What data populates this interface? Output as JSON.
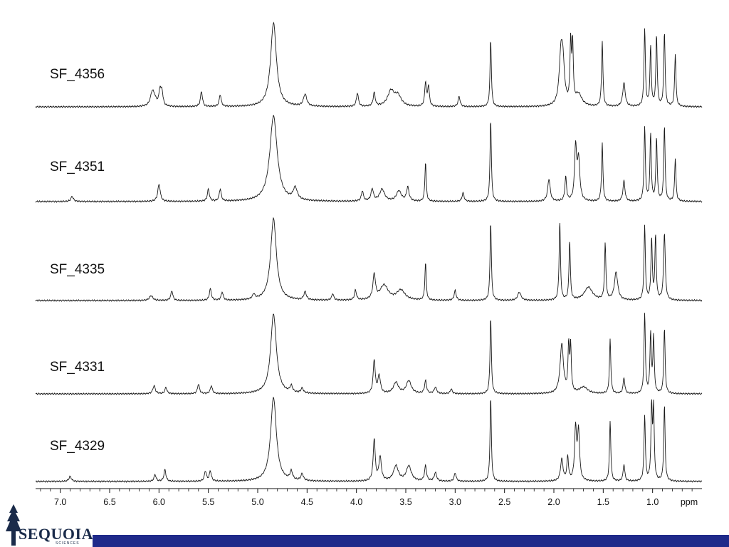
{
  "theme": {
    "trace_color": "#1a1a1a",
    "footer_color": "#1f2a8a",
    "logo_color": "#1a2b4a"
  },
  "logo": {
    "word": "SEQUOIA",
    "sub": "SCIENCES"
  },
  "chart_data": {
    "type": "line",
    "title": "",
    "xlabel": "ppm",
    "ylabel": "",
    "xlim": [
      7.25,
      0.5
    ],
    "reversed_x": true,
    "grid": false,
    "x_ticks": [
      "7.0",
      "6.5",
      "6.0",
      "5.5",
      "5.0",
      "4.5",
      "4.0",
      "3.5",
      "3.0",
      "2.5",
      "2.0",
      "1.5",
      "1.0"
    ],
    "x_tick_values": [
      7.0,
      6.5,
      6.0,
      5.5,
      5.0,
      4.5,
      4.0,
      3.5,
      3.0,
      2.5,
      2.0,
      1.5,
      1.0
    ],
    "series": [
      {
        "name": "SF_4356",
        "peaks": [
          [
            6.05,
            0.1,
            0.03
          ],
          [
            6.07,
            0.12,
            0.02
          ],
          [
            5.99,
            0.18,
            0.012
          ],
          [
            5.97,
            0.16,
            0.012
          ],
          [
            5.57,
            0.18,
            0.012
          ],
          [
            5.38,
            0.14,
            0.012
          ],
          [
            4.84,
            1.0,
            0.035
          ],
          [
            4.52,
            0.14,
            0.02
          ],
          [
            3.99,
            0.16,
            0.012
          ],
          [
            3.82,
            0.16,
            0.012
          ],
          [
            3.65,
            0.18,
            0.04
          ],
          [
            3.58,
            0.12,
            0.04
          ],
          [
            3.3,
            0.28,
            0.01
          ],
          [
            3.27,
            0.24,
            0.01
          ],
          [
            2.96,
            0.12,
            0.012
          ],
          [
            2.64,
            0.8,
            0.008
          ],
          [
            1.93,
            0.5,
            0.02
          ],
          [
            1.91,
            0.48,
            0.02
          ],
          [
            1.83,
            0.72,
            0.008
          ],
          [
            1.81,
            0.7,
            0.008
          ],
          [
            1.75,
            0.14,
            0.04
          ],
          [
            1.51,
            0.78,
            0.008
          ],
          [
            1.29,
            0.28,
            0.015
          ],
          [
            1.08,
            0.92,
            0.008
          ],
          [
            1.02,
            0.7,
            0.008
          ],
          [
            0.96,
            0.84,
            0.008
          ],
          [
            0.88,
            0.88,
            0.008
          ],
          [
            0.77,
            0.62,
            0.008
          ]
        ]
      },
      {
        "name": "SF_4351",
        "peaks": [
          [
            6.88,
            0.06,
            0.015
          ],
          [
            6.0,
            0.2,
            0.015
          ],
          [
            5.5,
            0.14,
            0.012
          ],
          [
            5.38,
            0.14,
            0.012
          ],
          [
            4.84,
            1.0,
            0.045
          ],
          [
            4.62,
            0.14,
            0.025
          ],
          [
            3.94,
            0.12,
            0.012
          ],
          [
            3.84,
            0.14,
            0.015
          ],
          [
            3.74,
            0.14,
            0.03
          ],
          [
            3.57,
            0.12,
            0.03
          ],
          [
            3.48,
            0.16,
            0.015
          ],
          [
            3.3,
            0.46,
            0.008
          ],
          [
            2.92,
            0.1,
            0.012
          ],
          [
            2.64,
            0.96,
            0.008
          ],
          [
            2.05,
            0.26,
            0.015
          ],
          [
            1.88,
            0.28,
            0.01
          ],
          [
            1.78,
            0.62,
            0.012
          ],
          [
            1.75,
            0.48,
            0.015
          ],
          [
            1.51,
            0.68,
            0.008
          ],
          [
            1.29,
            0.24,
            0.012
          ],
          [
            1.08,
            0.86,
            0.008
          ],
          [
            1.02,
            0.78,
            0.008
          ],
          [
            0.96,
            0.74,
            0.008
          ],
          [
            0.88,
            0.88,
            0.008
          ],
          [
            0.77,
            0.5,
            0.008
          ]
        ]
      },
      {
        "name": "SF_4335",
        "peaks": [
          [
            6.08,
            0.06,
            0.02
          ],
          [
            5.87,
            0.12,
            0.012
          ],
          [
            5.48,
            0.14,
            0.012
          ],
          [
            5.36,
            0.1,
            0.012
          ],
          [
            5.04,
            0.06,
            0.015
          ],
          [
            4.84,
            1.0,
            0.035
          ],
          [
            4.52,
            0.1,
            0.015
          ],
          [
            4.24,
            0.08,
            0.012
          ],
          [
            4.01,
            0.12,
            0.012
          ],
          [
            3.82,
            0.3,
            0.015
          ],
          [
            3.72,
            0.18,
            0.05
          ],
          [
            3.55,
            0.12,
            0.05
          ],
          [
            3.3,
            0.46,
            0.008
          ],
          [
            3.0,
            0.12,
            0.012
          ],
          [
            2.64,
            0.96,
            0.008
          ],
          [
            2.35,
            0.1,
            0.02
          ],
          [
            1.94,
            0.96,
            0.008
          ],
          [
            1.84,
            0.72,
            0.008
          ],
          [
            1.65,
            0.16,
            0.05
          ],
          [
            1.48,
            0.68,
            0.008
          ],
          [
            1.37,
            0.34,
            0.02
          ],
          [
            1.08,
            0.9,
            0.008
          ],
          [
            1.01,
            0.74,
            0.008
          ],
          [
            0.97,
            0.78,
            0.008
          ],
          [
            0.88,
            0.82,
            0.01
          ]
        ]
      },
      {
        "name": "SF_4331",
        "peaks": [
          [
            6.05,
            0.1,
            0.015
          ],
          [
            5.93,
            0.08,
            0.012
          ],
          [
            5.6,
            0.12,
            0.012
          ],
          [
            5.47,
            0.1,
            0.012
          ],
          [
            4.84,
            1.0,
            0.035
          ],
          [
            4.66,
            0.08,
            0.015
          ],
          [
            4.55,
            0.06,
            0.015
          ],
          [
            3.82,
            0.42,
            0.012
          ],
          [
            3.77,
            0.22,
            0.015
          ],
          [
            3.6,
            0.14,
            0.03
          ],
          [
            3.47,
            0.16,
            0.03
          ],
          [
            3.3,
            0.16,
            0.012
          ],
          [
            3.2,
            0.08,
            0.015
          ],
          [
            3.04,
            0.06,
            0.012
          ],
          [
            2.64,
            0.96,
            0.008
          ],
          [
            1.92,
            0.62,
            0.02
          ],
          [
            1.85,
            0.58,
            0.008
          ],
          [
            1.83,
            0.56,
            0.008
          ],
          [
            1.7,
            0.08,
            0.05
          ],
          [
            1.43,
            0.68,
            0.008
          ],
          [
            1.29,
            0.2,
            0.01
          ],
          [
            1.08,
            1.0,
            0.008
          ],
          [
            1.02,
            0.74,
            0.008
          ],
          [
            0.99,
            0.7,
            0.008
          ],
          [
            0.88,
            0.82,
            0.008
          ]
        ]
      },
      {
        "name": "SF_4329",
        "peaks": [
          [
            6.9,
            0.06,
            0.015
          ],
          [
            6.04,
            0.08,
            0.012
          ],
          [
            5.94,
            0.14,
            0.012
          ],
          [
            5.53,
            0.12,
            0.012
          ],
          [
            5.48,
            0.12,
            0.012
          ],
          [
            4.84,
            1.0,
            0.035
          ],
          [
            4.66,
            0.1,
            0.015
          ],
          [
            4.55,
            0.08,
            0.015
          ],
          [
            3.82,
            0.5,
            0.012
          ],
          [
            3.76,
            0.28,
            0.015
          ],
          [
            3.6,
            0.18,
            0.03
          ],
          [
            3.47,
            0.18,
            0.03
          ],
          [
            3.3,
            0.18,
            0.012
          ],
          [
            3.2,
            0.1,
            0.015
          ],
          [
            3.0,
            0.1,
            0.012
          ],
          [
            2.64,
            1.0,
            0.008
          ],
          [
            1.92,
            0.26,
            0.015
          ],
          [
            1.86,
            0.28,
            0.01
          ],
          [
            1.78,
            0.62,
            0.012
          ],
          [
            1.75,
            0.58,
            0.012
          ],
          [
            1.43,
            0.72,
            0.008
          ],
          [
            1.29,
            0.2,
            0.01
          ],
          [
            1.08,
            0.78,
            0.008
          ],
          [
            1.01,
            0.86,
            0.008
          ],
          [
            0.99,
            0.84,
            0.008
          ],
          [
            0.88,
            0.9,
            0.008
          ]
        ]
      }
    ]
  }
}
